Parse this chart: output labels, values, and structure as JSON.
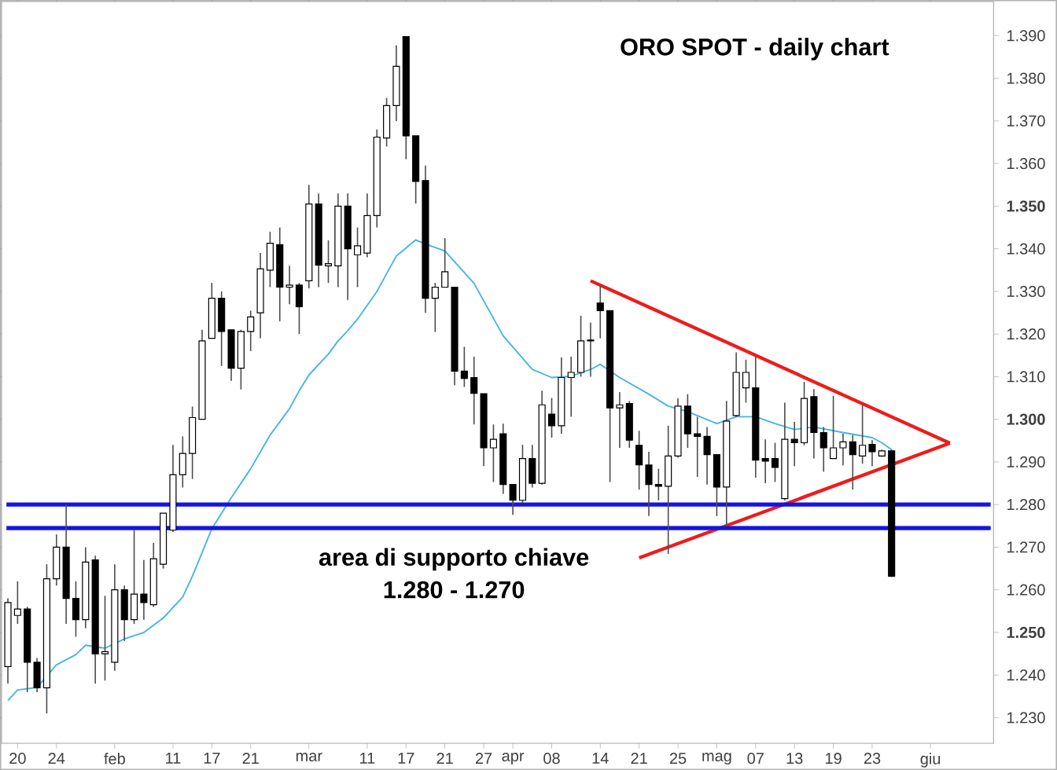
{
  "chart_data": {
    "type": "candlestick",
    "title": "ORO SPOT - daily chart",
    "annotations": [
      "area di supporto chiave",
      "1.280 - 1.270"
    ],
    "categories": [
      null,
      "20",
      null,
      null,
      null,
      "24",
      null,
      null,
      null,
      null,
      null,
      "feb",
      null,
      null,
      null,
      null,
      null,
      "11",
      null,
      null,
      null,
      "17",
      null,
      null,
      null,
      "21",
      null,
      null,
      null,
      null,
      null,
      "mar",
      null,
      null,
      null,
      null,
      null,
      "11",
      null,
      null,
      null,
      "17",
      null,
      null,
      null,
      "21",
      null,
      null,
      null,
      "27",
      null,
      null,
      "apr",
      null,
      null,
      null,
      "08",
      null,
      null,
      null,
      null,
      "14",
      null,
      null,
      null,
      "21",
      null,
      null,
      null,
      "25",
      null,
      null,
      null,
      "mag",
      null,
      null,
      null,
      "07",
      null,
      null,
      null,
      "13",
      null,
      null,
      null,
      "19",
      null,
      null,
      null,
      "23",
      null,
      null,
      null,
      null,
      null,
      "giu",
      null,
      null,
      null,
      null,
      null,
      null
    ],
    "ohlc": [
      [
        1242,
        1258,
        1238,
        1257
      ],
      [
        1254,
        1262,
        1252,
        1255.5
      ],
      [
        1255.5,
        1256,
        1236,
        1243
      ],
      [
        1243,
        1244,
        1236,
        1237
      ],
      [
        1237,
        1266,
        1231,
        1262.6
      ],
      [
        1262.6,
        1273,
        1261,
        1270
      ],
      [
        1270,
        1280,
        1252,
        1258
      ],
      [
        1258,
        1262,
        1249,
        1253
      ],
      [
        1253,
        1270,
        1251,
        1266.5
      ],
      [
        1267,
        1268,
        1238,
        1245
      ],
      [
        1245,
        1258.6,
        1238.7,
        1245.5
      ],
      [
        1243,
        1266,
        1241,
        1260
      ],
      [
        1260,
        1261,
        1248,
        1253
      ],
      [
        1253,
        1274,
        1252,
        1259
      ],
      [
        1259,
        1267,
        1253,
        1257
      ],
      [
        1256.5,
        1271,
        1256,
        1267.3
      ],
      [
        1266,
        1278,
        1265,
        1278
      ],
      [
        1274,
        1294,
        1273.6,
        1287
      ],
      [
        1287,
        1296,
        1284,
        1292
      ],
      [
        1292,
        1303,
        1286,
        1300.4
      ],
      [
        1300,
        1321,
        1300,
        1318.4
      ],
      [
        1319,
        1332,
        1319,
        1328.4
      ],
      [
        1328.4,
        1330,
        1312.5,
        1320.6
      ],
      [
        1321,
        1321,
        1309,
        1312
      ],
      [
        1312,
        1321,
        1307,
        1320.6
      ],
      [
        1320.6,
        1325.5,
        1316,
        1324
      ],
      [
        1325,
        1339,
        1319,
        1335.3
      ],
      [
        1335,
        1344,
        1331,
        1341.3
      ],
      [
        1341,
        1345,
        1323,
        1331
      ],
      [
        1331,
        1336,
        1327,
        1331.5
      ],
      [
        1331.5,
        1332,
        1320,
        1326.4
      ],
      [
        1332.5,
        1355,
        1330.7,
        1350.5
      ],
      [
        1350.5,
        1353,
        1331,
        1336.2
      ],
      [
        1336,
        1342,
        1332,
        1336.5
      ],
      [
        1336,
        1353,
        1331,
        1350
      ],
      [
        1350,
        1353,
        1328,
        1340
      ],
      [
        1338.6,
        1345,
        1331,
        1340.7
      ],
      [
        1339,
        1353,
        1338,
        1347.8
      ],
      [
        1347.8,
        1368,
        1345,
        1366.2
      ],
      [
        1366,
        1375.4,
        1364,
        1373.6
      ],
      [
        1373.6,
        1387.7,
        1370,
        1382.8
      ],
      [
        1389.8,
        1389.8,
        1361,
        1366.5
      ],
      [
        1366.5,
        1366.5,
        1350.6,
        1355.8
      ],
      [
        1356,
        1359.5,
        1325,
        1328.4
      ],
      [
        1328.4,
        1332,
        1320.5,
        1331
      ],
      [
        1331,
        1342.5,
        1330.9,
        1334.6
      ],
      [
        1331,
        1331,
        1308,
        1311.3
      ],
      [
        1311.3,
        1317,
        1307.6,
        1309.6
      ],
      [
        1309.8,
        1314.7,
        1298.8,
        1306.1
      ],
      [
        1306,
        1306,
        1289,
        1293.3
      ],
      [
        1293.3,
        1298.8,
        1285.3,
        1295.3
      ],
      [
        1296.6,
        1299,
        1282.5,
        1284.7
      ],
      [
        1284.7,
        1284.7,
        1277.6,
        1281
      ],
      [
        1281,
        1294,
        1280.4,
        1290.8
      ],
      [
        1290.8,
        1294,
        1284,
        1285
      ],
      [
        1285,
        1306.7,
        1284.7,
        1303.4
      ],
      [
        1301.2,
        1305,
        1295.7,
        1298.5
      ],
      [
        1298.5,
        1314.5,
        1296.6,
        1309.8
      ],
      [
        1309.8,
        1314.7,
        1300.6,
        1311
      ],
      [
        1311,
        1324.3,
        1310,
        1318.4
      ],
      [
        1318.4,
        1322.7,
        1310,
        1318.6
      ],
      [
        1327.3,
        1331.3,
        1319,
        1325.5
      ],
      [
        1325.5,
        1325.5,
        1285.3,
        1302.7
      ],
      [
        1302.7,
        1306.4,
        1293.3,
        1303.4
      ],
      [
        1303.7,
        1304.3,
        1293.3,
        1295.1
      ],
      [
        1293.9,
        1297.3,
        1283.5,
        1289.3
      ],
      [
        1289.3,
        1292.4,
        1277.3,
        1284.7
      ],
      [
        1284.7,
        1288.4,
        1281,
        1284.3
      ],
      [
        1284.3,
        1298.5,
        1268.4,
        1291.4
      ],
      [
        1291.4,
        1304.9,
        1291,
        1303.1
      ],
      [
        1303.1,
        1305.9,
        1293.3,
        1296.6
      ],
      [
        1296.6,
        1300.6,
        1286.5,
        1296
      ],
      [
        1296,
        1298.2,
        1284.7,
        1291.7
      ],
      [
        1291.7,
        1291.7,
        1277.3,
        1284.1
      ],
      [
        1284.1,
        1304.3,
        1274.9,
        1299.6
      ],
      [
        1300.9,
        1315.7,
        1300.6,
        1311
      ],
      [
        1307.4,
        1314,
        1303.9,
        1311
      ],
      [
        1307.4,
        1314.7,
        1286.3,
        1290.4
      ],
      [
        1290.8,
        1295.3,
        1285,
        1290.2
      ],
      [
        1290.8,
        1294.5,
        1285.3,
        1288.7
      ],
      [
        1281.4,
        1303.9,
        1281,
        1295.3
      ],
      [
        1295.3,
        1299.4,
        1289,
        1294.5
      ],
      [
        1294.5,
        1308.8,
        1293.9,
        1304.9
      ],
      [
        1305.3,
        1307.1,
        1290.8,
        1296.9
      ],
      [
        1296.9,
        1298.2,
        1287.7,
        1293.3
      ],
      [
        1290.8,
        1305.5,
        1290.8,
        1293.3
      ],
      [
        1293.3,
        1296.6,
        1289.2,
        1294.7
      ],
      [
        1294.7,
        1296.3,
        1283.5,
        1291.7
      ],
      [
        1291.4,
        1303.3,
        1289.6,
        1293.9
      ],
      [
        1294.1,
        1295.1,
        1289,
        1292.4
      ],
      [
        1291.4,
        1292.9,
        1291.2,
        1292.6
      ],
      [
        1292.6,
        1292.9,
        1263,
        1263.2
      ],
      null,
      null,
      null,
      null,
      null,
      null,
      null,
      null,
      null,
      null
    ],
    "series": [
      {
        "type": "line",
        "color": "#45b4e4",
        "values": [
          1234,
          1236.5,
          null,
          1237.1,
          null,
          1242.4,
          null,
          1244.8,
          1247,
          null,
          1246.3,
          null,
          1248.5,
          null,
          1250,
          null,
          1253.4,
          null,
          1258.3,
          1263.2,
          null,
          1274.3,
          null,
          1281.6,
          null,
          1288.4,
          null,
          1296.3,
          null,
          1302.5,
          1306.7,
          1310.4,
          null,
          1315.3,
          1318.4,
          1320.8,
          1323.5,
          null,
          1330,
          null,
          1338.3,
          null,
          1342.1,
          1341.1,
          null,
          1339.5,
          null,
          null,
          1331.9,
          null,
          null,
          1319.6,
          null,
          null,
          1311.7,
          null,
          1309.8,
          null,
          1310.1,
          null,
          1311.7,
          1312.9,
          null,
          1309.8,
          null,
          null,
          1305.9,
          null,
          1303.1,
          null,
          1301.8,
          null,
          null,
          1299,
          null,
          1300.6,
          null,
          1300.6,
          null,
          1299,
          null,
          1297.6,
          null,
          1298.2,
          null,
          null,
          1296.9,
          null,
          null,
          1295.7,
          1294.5,
          1292.9,
          null,
          null,
          null,
          null,
          null,
          null,
          null,
          null,
          null,
          null
        ]
      },
      {
        "type": "line",
        "color": "#ee1c1c",
        "values": [
          null,
          null,
          null,
          null,
          null,
          null,
          null,
          null,
          null,
          null,
          null,
          null,
          null,
          null,
          null,
          null,
          null,
          null,
          null,
          null,
          null,
          null,
          null,
          null,
          null,
          null,
          null,
          null,
          null,
          null,
          null,
          null,
          null,
          null,
          null,
          null,
          null,
          null,
          null,
          null,
          null,
          null,
          null,
          null,
          null,
          null,
          null,
          null,
          null,
          null,
          null,
          null,
          null,
          null,
          null,
          null,
          null,
          null,
          null,
          null,
          1332.5,
          null,
          null,
          null,
          null,
          null,
          null,
          null,
          null,
          null,
          null,
          null,
          null,
          null,
          null,
          null,
          null,
          null,
          null,
          null,
          null,
          null,
          null,
          null,
          null,
          null,
          null,
          null,
          null,
          null,
          null,
          null,
          null,
          null,
          null,
          null,
          null,
          1294.4,
          null,
          null,
          null,
          null
        ]
      },
      {
        "type": "line",
        "color": "#ee1c1c",
        "values": [
          null,
          null,
          null,
          null,
          null,
          null,
          null,
          null,
          null,
          null,
          null,
          null,
          null,
          null,
          null,
          null,
          null,
          null,
          null,
          null,
          null,
          null,
          null,
          null,
          null,
          null,
          null,
          null,
          null,
          null,
          null,
          null,
          null,
          null,
          null,
          null,
          null,
          null,
          null,
          null,
          null,
          null,
          null,
          null,
          null,
          null,
          null,
          null,
          null,
          null,
          null,
          null,
          null,
          null,
          null,
          null,
          null,
          null,
          null,
          null,
          null,
          null,
          null,
          null,
          null,
          1267.5,
          null,
          null,
          null,
          null,
          null,
          null,
          null,
          null,
          null,
          null,
          null,
          null,
          null,
          null,
          null,
          null,
          null,
          null,
          null,
          null,
          null,
          null,
          null,
          null,
          null,
          null,
          null,
          null,
          null,
          null,
          null,
          1294.4,
          null,
          null,
          null,
          null
        ]
      }
    ],
    "ref_lines": [
      {
        "axis": "y",
        "value": 1280,
        "color": "#1414e6"
      },
      {
        "axis": "y",
        "value": 1274.5,
        "color": "#1414e6"
      }
    ],
    "ylim": [
      1224,
      1398
    ],
    "yticks": [
      {
        "value": 1230,
        "label": "1.230"
      },
      {
        "value": 1240,
        "label": "1.240"
      },
      {
        "value": 1250,
        "label": "1.250"
      },
      {
        "value": 1260,
        "label": "1.260"
      },
      {
        "value": 1270,
        "label": "1.270"
      },
      {
        "value": 1280,
        "label": "1.280"
      },
      {
        "value": 1290,
        "label": "1.290"
      },
      {
        "value": 1300,
        "label": "1.300"
      },
      {
        "value": 1310,
        "label": "1.310"
      },
      {
        "value": 1320,
        "label": "1.320"
      },
      {
        "value": 1330,
        "label": "1.330"
      },
      {
        "value": 1340,
        "label": "1.340"
      },
      {
        "value": 1350,
        "label": "1.350"
      },
      {
        "value": 1360,
        "label": "1.360"
      },
      {
        "value": 1370,
        "label": "1.370"
      },
      {
        "value": 1380,
        "label": "1.380"
      },
      {
        "value": 1390,
        "label": "1.390"
      }
    ]
  }
}
